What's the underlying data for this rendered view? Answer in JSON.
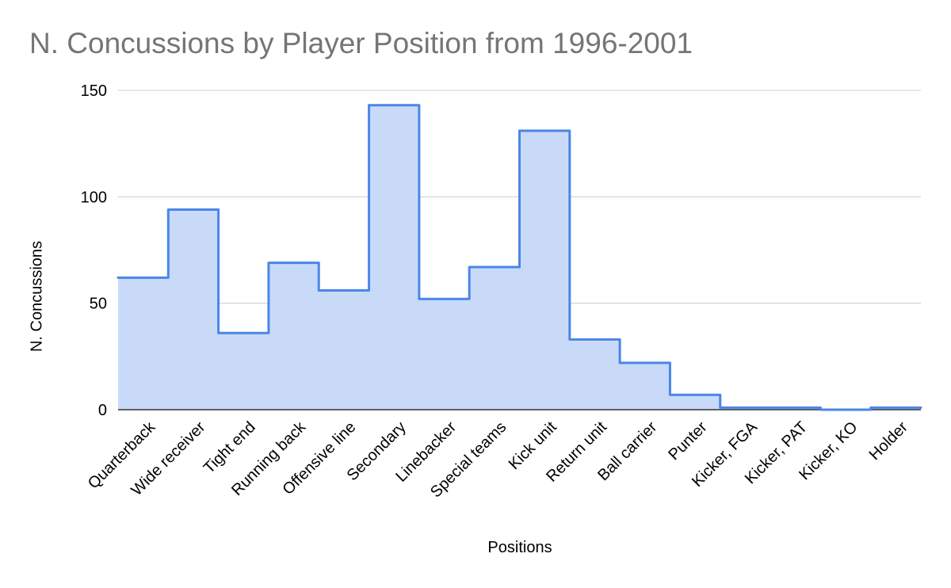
{
  "chart_data": {
    "type": "area",
    "title": "N. Concussions by Player Position from 1996-2001",
    "xlabel": "Positions",
    "ylabel": "N. Concussions",
    "categories": [
      "Quarterback",
      "Wide receiver",
      "Tight end",
      "Running back",
      "Offensive line",
      "Secondary",
      "Linebacker",
      "Special teams",
      "Kick unit",
      "Return unit",
      "Ball carrier",
      "Punter",
      "Kicker, FGA",
      "Kicker, PAT",
      "Kicker, KO",
      "Holder"
    ],
    "values": [
      62,
      94,
      36,
      69,
      56,
      143,
      52,
      67,
      131,
      33,
      22,
      7,
      1,
      1,
      0,
      1
    ],
    "ylim": [
      0,
      150
    ],
    "yticks": [
      "0",
      "50",
      "100",
      "150"
    ],
    "grid": true,
    "stepped": true,
    "line_color": "#4a86e8",
    "fill_color": "#c9daf8"
  }
}
